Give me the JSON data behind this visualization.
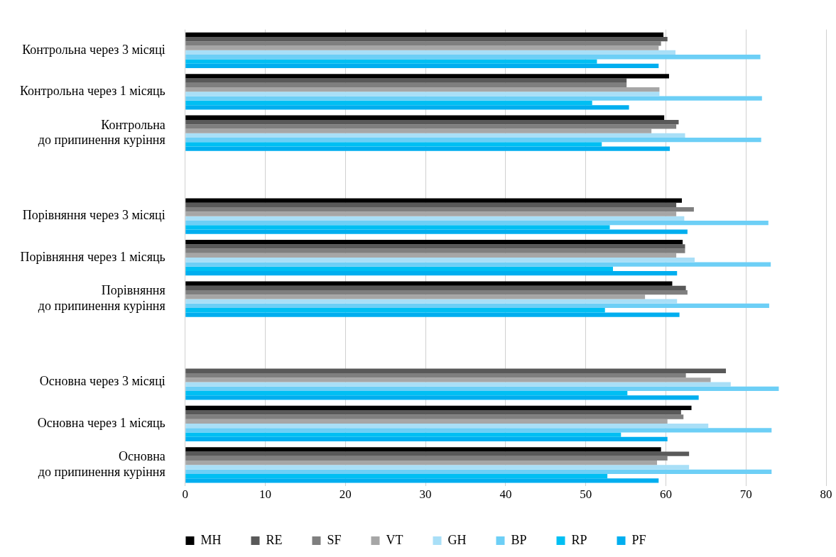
{
  "chart_data": {
    "type": "bar",
    "orientation": "horizontal",
    "categories": [
      "Контрольна через 3 місяці",
      "Контрольна через 1 місяць",
      "Контрольна\nдо припинення куріння",
      null,
      "Порівняння через 3 місяці",
      "Порівняння через 1 місяць",
      "Порівняння\nдо припинення куріння",
      null,
      "Основна через 3 місяці",
      "Основна через 1 місяць",
      "Основна\nдо припинення куріння"
    ],
    "series": [
      {
        "name": "MH",
        "color": "#000000",
        "values": [
          59.7,
          60.4,
          59.8,
          null,
          62.0,
          62.1,
          60.8,
          null,
          null,
          63.2,
          59.4
        ]
      },
      {
        "name": "RE",
        "color": "#595959",
        "values": [
          60.2,
          55.1,
          61.6,
          null,
          61.3,
          62.4,
          62.5,
          null,
          67.5,
          61.9,
          62.9
        ]
      },
      {
        "name": "SF",
        "color": "#7f7f7f",
        "values": [
          59.4,
          55.1,
          61.3,
          null,
          63.5,
          62.4,
          62.7,
          null,
          62.5,
          62.2,
          60.2
        ]
      },
      {
        "name": "VT",
        "color": "#a6a6a6",
        "values": [
          59.1,
          59.2,
          58.2,
          null,
          61.3,
          61.3,
          57.4,
          null,
          65.6,
          60.2,
          58.9
        ]
      },
      {
        "name": "GH",
        "color": "#a9dff7",
        "values": [
          61.2,
          59.2,
          62.4,
          null,
          62.3,
          63.6,
          61.4,
          null,
          68.1,
          65.3,
          62.9
        ]
      },
      {
        "name": "BP",
        "color": "#6dcff6",
        "values": [
          71.8,
          72.0,
          71.9,
          null,
          72.8,
          73.1,
          72.9,
          null,
          74.1,
          73.2,
          73.2
        ]
      },
      {
        "name": "RP",
        "color": "#00bff3",
        "values": [
          51.4,
          50.8,
          52.0,
          null,
          53.0,
          53.4,
          52.4,
          null,
          55.2,
          54.4,
          52.7
        ]
      },
      {
        "name": "PF",
        "color": "#00aeef",
        "values": [
          59.1,
          55.4,
          60.5,
          null,
          62.7,
          61.4,
          61.7,
          null,
          64.1,
          60.2,
          59.1
        ]
      }
    ],
    "xlim": [
      0,
      80
    ],
    "xticks": [
      0,
      10,
      20,
      30,
      40,
      50,
      60,
      70,
      80
    ],
    "grid": "x",
    "legend": "bottom"
  }
}
